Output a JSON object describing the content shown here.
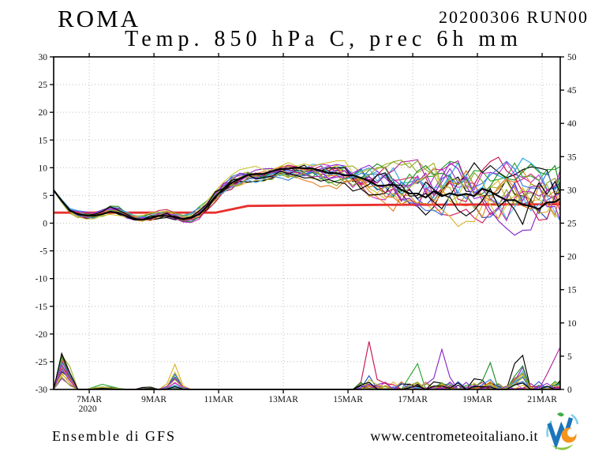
{
  "header": {
    "station": "ROMA",
    "run": "20200306 RUN00",
    "subtitle": "Temp. 850 hPa C, prec 6h mm"
  },
  "footer": {
    "model_label": "Ensemble di GFS",
    "website": "www.centrometeoitaliano.it",
    "logo": {
      "name": "centro-meteo-italiano-logo",
      "blue": "#1b75bb",
      "orange": "#f7941d",
      "green": "#8dc63f",
      "leaf_green": "#3fae49",
      "light_blue": "#82cfe8"
    }
  },
  "chart_data": {
    "type": "line",
    "title": "Temp. 850 hPa C, prec 6h mm",
    "station": "ROMA",
    "run": "20200306 RUN00",
    "model": "Ensemble di GFS",
    "x_axis": {
      "tick_labels": [
        "7MAR",
        "9MAR",
        "11MAR",
        "13MAR",
        "15MAR",
        "17MAR",
        "19MAR",
        "21MAR"
      ],
      "year_label": "2020",
      "tick_days": [
        1,
        3,
        5,
        7,
        9,
        11,
        13,
        15
      ],
      "domain_days": [
        -0.1,
        15.56
      ]
    },
    "left_axis": {
      "min": -30,
      "max": 30,
      "step": 5,
      "tick_labels": [
        "30",
        "25",
        "20",
        "15",
        "10",
        "5",
        "0",
        "-5",
        "-10",
        "-15",
        "-20",
        "-25",
        "-30"
      ]
    },
    "right_axis": {
      "min": 0,
      "max": 50,
      "step": 5,
      "tick_labels": [
        "50",
        "45",
        "40",
        "35",
        "30",
        "25",
        "20",
        "15",
        "10",
        "5",
        "0"
      ]
    },
    "grid": {
      "color": "#bdbdbd",
      "style": "dotted"
    },
    "frame_color": "#000000",
    "climatology": {
      "color": "#e8302e",
      "points": [
        [
          -0.1,
          1.9
        ],
        [
          4.9,
          1.9
        ],
        [
          5.9,
          3.1
        ],
        [
          10,
          3.3
        ],
        [
          15.56,
          3.4
        ]
      ]
    },
    "ensemble": {
      "member_count": 21,
      "member_colors": [
        "#000000",
        "#d62864",
        "#2ca830",
        "#2356c8",
        "#28a8dc",
        "#c832c8",
        "#dcb432",
        "#e88428",
        "#8828c8",
        "#a0b428",
        "#000000",
        "#c81450",
        "#1e8c28",
        "#3c78dc",
        "#50b4e6",
        "#b428a0",
        "#d2c83c",
        "#dc7828",
        "#9632dc",
        "#8ca828",
        "#000000"
      ],
      "mean_color": "#000000",
      "temp_mean": [
        [
          -0.1,
          5.9
        ],
        [
          0.1,
          4.6
        ],
        [
          0.25,
          2.9
        ],
        [
          0.5,
          1.8
        ],
        [
          0.75,
          1.4
        ],
        [
          1,
          1.2
        ],
        [
          1.25,
          1.5
        ],
        [
          1.5,
          2
        ],
        [
          1.75,
          2.5
        ],
        [
          2,
          2
        ],
        [
          2.25,
          1.2
        ],
        [
          2.5,
          0.8
        ],
        [
          2.75,
          0.9
        ],
        [
          3,
          1.1
        ],
        [
          3.25,
          1.7
        ],
        [
          3.5,
          1.5
        ],
        [
          3.75,
          1
        ],
        [
          4,
          0.7
        ],
        [
          4.25,
          1
        ],
        [
          4.5,
          2.2
        ],
        [
          4.75,
          3.8
        ],
        [
          5,
          5.5
        ],
        [
          5.25,
          6.8
        ],
        [
          5.5,
          7.6
        ],
        [
          5.75,
          8.2
        ],
        [
          6,
          8.6
        ],
        [
          6.25,
          8.3
        ],
        [
          6.5,
          8.8
        ],
        [
          6.75,
          9.2
        ],
        [
          7,
          9.5
        ],
        [
          7.25,
          9.2
        ],
        [
          7.5,
          9.6
        ],
        [
          7.75,
          9.3
        ],
        [
          8,
          9.4
        ],
        [
          8.25,
          9
        ],
        [
          8.5,
          8.7
        ],
        [
          8.75,
          8.4
        ],
        [
          9,
          8.2
        ],
        [
          9.5,
          7.6
        ],
        [
          10,
          7.2
        ],
        [
          10.5,
          6.8
        ],
        [
          11,
          6.5
        ],
        [
          11.5,
          6.4
        ],
        [
          12,
          6.2
        ],
        [
          12.5,
          6.1
        ],
        [
          13,
          6
        ],
        [
          13.5,
          5.9
        ],
        [
          14,
          5.8
        ],
        [
          14.5,
          5.7
        ],
        [
          15,
          5.6
        ],
        [
          15.56,
          5.5
        ]
      ],
      "temp_spread": [
        [
          -0.1,
          0.12
        ],
        [
          0.3,
          0.35
        ],
        [
          1,
          0.55
        ],
        [
          2,
          0.6
        ],
        [
          3,
          0.6
        ],
        [
          4,
          0.7
        ],
        [
          4.75,
          0.95
        ],
        [
          5.5,
          0.95
        ],
        [
          6,
          1.05
        ],
        [
          7,
          1.05
        ],
        [
          8,
          1.3
        ],
        [
          8.5,
          1.6
        ],
        [
          9,
          2
        ],
        [
          9.5,
          2.4
        ],
        [
          10,
          2.8
        ],
        [
          10.5,
          3.2
        ],
        [
          11,
          3.5
        ],
        [
          12,
          4
        ],
        [
          13,
          4.3
        ],
        [
          14,
          4.5
        ],
        [
          15,
          4.6
        ],
        [
          15.56,
          4.7
        ]
      ],
      "precip_events": [
        {
          "start": 0.02,
          "peak": 0.2,
          "end": 0.5,
          "max_mm": 8.8,
          "leader": 9,
          "secondary": 0.85,
          "pw": 0.4
        },
        {
          "start": 0.9,
          "peak": 1.4,
          "end": 2.1,
          "max_mm": 0.8,
          "leader": 2,
          "secondary": 0.6,
          "pw": 1
        },
        {
          "start": 2.5,
          "peak": 2.8,
          "end": 3.15,
          "max_mm": 0.6,
          "leader": 0,
          "secondary": 0.5,
          "pw": 1.5
        },
        {
          "start": 3.35,
          "peak": 3.6,
          "end": 3.95,
          "max_mm": 4.6,
          "leader": 6,
          "secondary": 0.65,
          "pw": 1.5
        },
        {
          "start": 9.45,
          "peak": 9.62,
          "end": 9.95,
          "max_mm": 8.8,
          "leader": 11,
          "secondary": 0.15,
          "pw": 3
        },
        {
          "start": 10.8,
          "peak": 11.05,
          "end": 11.35,
          "max_mm": 5.2,
          "leader": 2,
          "secondary": 0.18,
          "pw": 3
        },
        {
          "start": 11.55,
          "peak": 11.9,
          "end": 12.25,
          "max_mm": 5.6,
          "leader": 8,
          "secondary": 0.18,
          "pw": 3
        },
        {
          "start": 12.75,
          "peak": 13.0,
          "end": 13.3,
          "max_mm": 2.6,
          "leader": 0,
          "secondary": 0.35,
          "pw": 2
        },
        {
          "start": 13.15,
          "peak": 13.4,
          "end": 13.65,
          "max_mm": 2.8,
          "leader": 12,
          "secondary": 0.35,
          "pw": 2
        },
        {
          "start": 14.05,
          "peak": 14.3,
          "end": 14.6,
          "max_mm": 6.6,
          "leader": 10,
          "secondary": 0.75,
          "pw": 2.2
        },
        {
          "start": 15.0,
          "peak": 15.56,
          "end": 15.6,
          "max_mm": 6.5,
          "leader": 15,
          "secondary": 0.15,
          "pw": 3
        }
      ],
      "background_drizzle": {
        "start": 9.4,
        "end": 15.56,
        "max_mm": 1.2,
        "probability": 0.28
      }
    }
  }
}
